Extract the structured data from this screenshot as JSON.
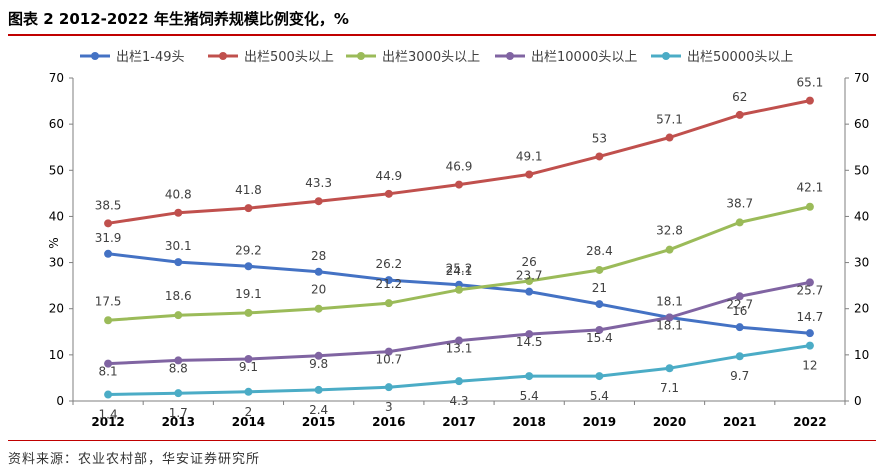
{
  "title": "图表 2 2012-2022 年生猪饲养规模比例变化，%",
  "source": "资料来源：农业农村部，华安证券研究所",
  "chart_data": {
    "type": "line",
    "ylabel": "%",
    "ylim": [
      0,
      70
    ],
    "yticks": [
      "0",
      "10",
      "20",
      "30",
      "40",
      "50",
      "60",
      "70"
    ],
    "categories": [
      "2012",
      "2013",
      "2014",
      "2015",
      "2016",
      "2017",
      "2018",
      "2019",
      "2020",
      "2021",
      "2022"
    ],
    "legend_position": "top",
    "grid": false,
    "series": [
      {
        "name": "出栏1-49头",
        "color": "#4472c4",
        "values": [
          31.9,
          30.1,
          29.2,
          28,
          26.2,
          25.2,
          23.7,
          21,
          18.1,
          16,
          14.7
        ],
        "labels": [
          "31.9",
          "30.1",
          "29.2",
          "28",
          "26.2",
          "25.2",
          "23.7",
          "21",
          "18.1",
          "16",
          "14.7"
        ]
      },
      {
        "name": "出栏500头以上",
        "color": "#c0504d",
        "values": [
          38.5,
          40.8,
          41.8,
          43.3,
          44.9,
          46.9,
          49.1,
          53,
          57.1,
          62,
          65.1
        ],
        "labels": [
          "38.5",
          "40.8",
          "41.8",
          "43.3",
          "44.9",
          "46.9",
          "49.1",
          "53",
          "57.1",
          "62",
          "65.1"
        ]
      },
      {
        "name": "出栏3000头以上",
        "color": "#9bbb59",
        "values": [
          17.5,
          18.6,
          19.1,
          20,
          21.2,
          24.1,
          26,
          28.4,
          32.8,
          38.7,
          42.1
        ],
        "labels": [
          "17.5",
          "18.6",
          "19.1",
          "20",
          "21.2",
          "24.1",
          "26",
          "28.4",
          "32.8",
          "38.7",
          "42.1"
        ]
      },
      {
        "name": "出栏10000头以上",
        "color": "#8064a2",
        "values": [
          8.1,
          8.8,
          9.1,
          9.8,
          10.7,
          13.1,
          14.5,
          15.4,
          18.1,
          22.7,
          25.7
        ],
        "labels": [
          "8.1",
          "8.8",
          "9.1",
          "9.8",
          "10.7",
          "13.1",
          "14.5",
          "15.4",
          "18.1",
          "22.7",
          "25.7"
        ]
      },
      {
        "name": "出栏50000头以上",
        "color": "#4bacc6",
        "values": [
          1.4,
          1.7,
          2,
          2.4,
          3,
          4.3,
          5.4,
          5.4,
          7.1,
          9.7,
          12
        ],
        "labels": [
          "1.4",
          "1.7",
          "2",
          "2.4",
          "3",
          "4.3",
          "5.4",
          "5.4",
          "7.1",
          "9.7",
          "12"
        ]
      }
    ]
  }
}
